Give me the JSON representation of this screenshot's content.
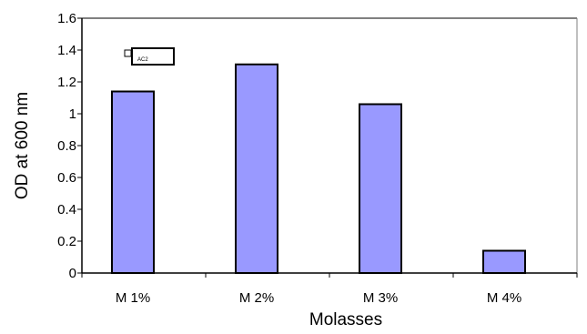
{
  "chart_data": {
    "type": "bar",
    "categories": [
      "M 1%",
      "M 2%",
      "M 3%",
      "M 4%"
    ],
    "series": [
      {
        "name": "AC2",
        "values": [
          1.14,
          1.31,
          1.06,
          0.14
        ]
      }
    ],
    "xlabel": "Molasses",
    "ylabel": "OD at 600 nm",
    "ylim": [
      0,
      1.6
    ],
    "yticks": [
      "0",
      "0.2",
      "0.4",
      "0.6",
      "0.8",
      "1",
      "1.2",
      "1.4",
      "1.6"
    ],
    "grid": false,
    "legend": "top-left",
    "colors": {
      "bar": "#9999ff",
      "bar_stroke": "#000000",
      "plot_border": "#808080"
    }
  }
}
